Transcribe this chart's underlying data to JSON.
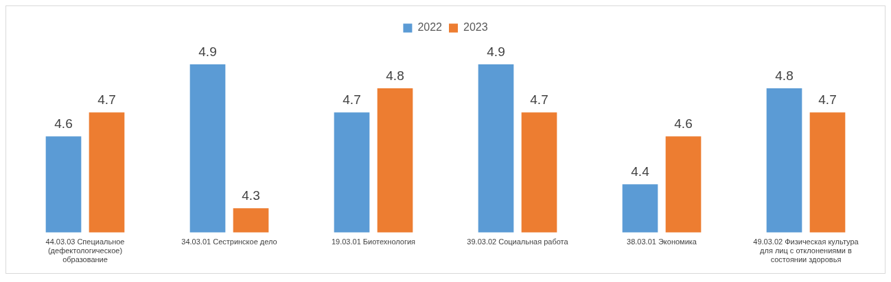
{
  "chart_data": {
    "type": "bar",
    "categories": [
      "44.03.03 Специальное (дефектологическое) образование",
      "34.03.01 Сестринское дело",
      "19.03.01 Биотехнология",
      "39.03.02 Социальная работа",
      "38.03.01 Экономика",
      "49.03.02 Физическая культура для лиц с отклонениями в состоянии здоровья"
    ],
    "series": [
      {
        "name": "2022",
        "color": "#5b9bd5",
        "values": [
          4.6,
          4.9,
          4.7,
          4.9,
          4.4,
          4.8
        ]
      },
      {
        "name": "2023",
        "color": "#ed7d31",
        "values": [
          4.7,
          4.3,
          4.8,
          4.7,
          4.6,
          4.7
        ]
      }
    ],
    "tick_labels": "x",
    "data_labels": true,
    "legend": "top",
    "grid": false
  }
}
